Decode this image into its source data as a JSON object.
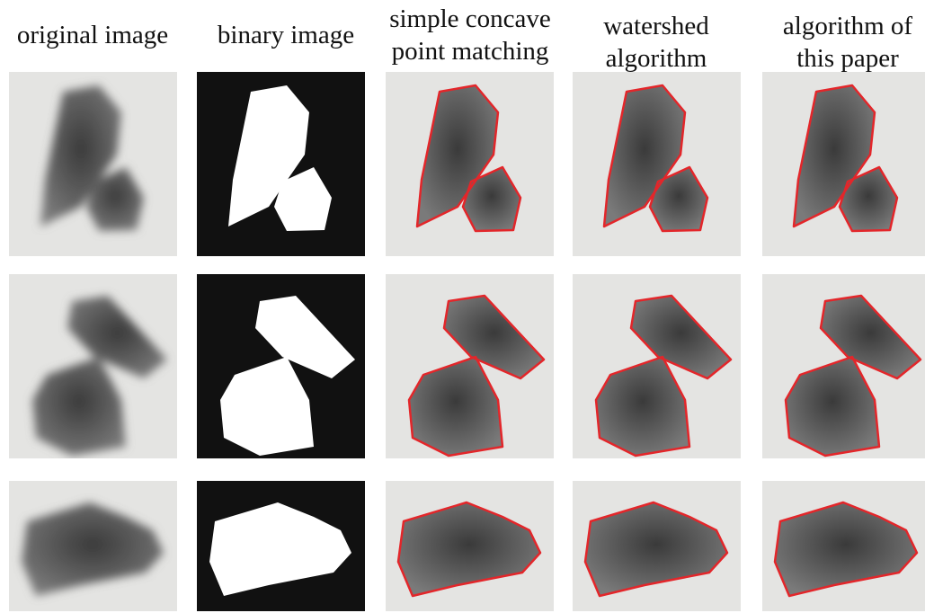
{
  "column_headers": [
    [
      "original image"
    ],
    [
      "binary image"
    ],
    [
      "simple concave",
      "point matching"
    ],
    [
      "watershed",
      "algorithm"
    ],
    [
      "algorithm of",
      "this paper"
    ]
  ]
}
